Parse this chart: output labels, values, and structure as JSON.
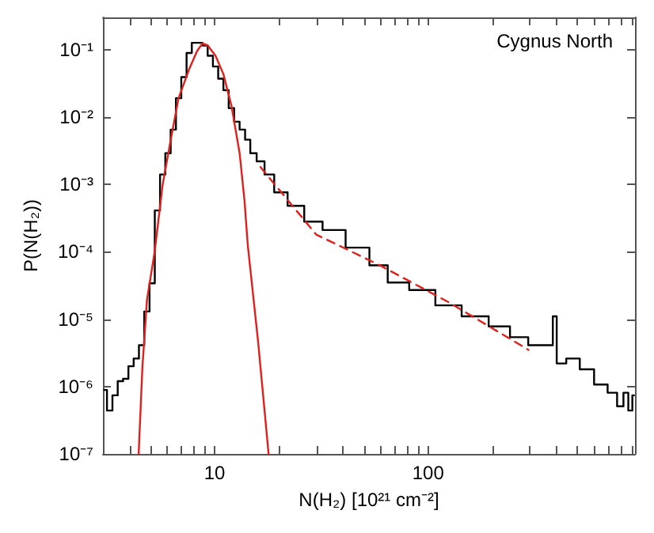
{
  "chart_data": {
    "type": "step",
    "xlabel": "N(H₂) [10²¹ cm⁻²]",
    "ylabel": "P(N(H₂))",
    "annotations": [
      "Cygnus North"
    ],
    "log": "xy",
    "grid": false,
    "marker": "none",
    "xlim": [
      3,
      930
    ],
    "ylim": [
      1e-07,
      0.3
    ],
    "xticks": [
      {
        "value": 4,
        "label": null
      },
      {
        "value": 5,
        "label": null
      },
      {
        "value": 6,
        "label": null
      },
      {
        "value": 7,
        "label": null
      },
      {
        "value": 8,
        "label": null
      },
      {
        "value": 9,
        "label": null
      },
      10,
      {
        "value": 20,
        "label": null
      },
      {
        "value": 30,
        "label": null
      },
      {
        "value": 40,
        "label": null
      },
      {
        "value": 50,
        "label": null
      },
      {
        "value": 60,
        "label": null
      },
      {
        "value": 70,
        "label": null
      },
      {
        "value": 80,
        "label": null
      },
      {
        "value": 90,
        "label": null
      },
      100,
      {
        "value": 200,
        "label": null
      },
      {
        "value": 300,
        "label": null
      },
      {
        "value": 400,
        "label": null
      },
      {
        "value": 500,
        "label": null
      },
      {
        "value": 600,
        "label": null
      },
      {
        "value": 700,
        "label": null
      },
      {
        "value": 800,
        "label": null
      },
      {
        "value": 900,
        "label": null
      }
    ],
    "yticks": [
      {
        "value": 1e-07,
        "label": "10⁻⁷"
      },
      {
        "value": 1e-06,
        "label": "10⁻⁶"
      },
      {
        "value": 1e-05,
        "label": "10⁻⁵"
      },
      {
        "value": 0.0001,
        "label": "10⁻⁴"
      },
      {
        "value": 0.001,
        "label": "10⁻³"
      },
      {
        "value": 0.01,
        "label": "10⁻²"
      },
      {
        "value": 0.1,
        "label": "10⁻¹"
      }
    ],
    "series": [
      {
        "type": "step",
        "color": "#000000",
        "line_style": "solid",
        "x": [
          3.04,
          3.23,
          3.42,
          3.62,
          3.84,
          4.06,
          4.3,
          4.55,
          4.82,
          5.1,
          5.4,
          5.71,
          6.05,
          6.41,
          6.78,
          7.19,
          7.6,
          8.05,
          8.53,
          9.02,
          9.55,
          10.1,
          10.7,
          11.3,
          12.0,
          12.7,
          13.5,
          14.3,
          15.1,
          16.4,
          17.9,
          20.2,
          23.9,
          28.9,
          35.5,
          47.5,
          59.3,
          70.5,
          94.2,
          124,
          166,
          222,
          263,
          329,
          377,
          390,
          410,
          479,
          549,
          652,
          735,
          800,
          843,
          888,
          920
        ],
        "values": [
          8.9e-07,
          4.4e-07,
          7.4e-07,
          1.2e-06,
          1.3e-06,
          2e-06,
          2.6e-06,
          4.1e-06,
          1.3e-05,
          3.4e-05,
          0.00041,
          0.0014,
          0.0029,
          0.0065,
          0.019,
          0.039,
          0.089,
          0.126,
          0.126,
          0.115,
          0.081,
          0.056,
          0.037,
          0.025,
          0.0135,
          0.0085,
          0.0065,
          0.0046,
          0.0029,
          0.0022,
          0.0014,
          0.00076,
          0.00048,
          0.00028,
          0.00021,
          0.000115,
          6.3e-05,
          3.5e-05,
          2.7e-05,
          1.6e-05,
          1.1e-05,
          7.8e-06,
          5.4e-06,
          4.1e-06,
          4.1e-06,
          1.1e-05,
          2.2e-06,
          2.6e-06,
          1.8e-06,
          1.07e-06,
          8.1e-07,
          5.1e-07,
          8.1e-07,
          4.4e-07,
          7.4e-07
        ]
      },
      {
        "type": "line",
        "color": "#e0201b",
        "line_style": "solid",
        "x": [
          4.41,
          4.59,
          4.82,
          5.24,
          5.71,
          6.2,
          6.78,
          7.6,
          8.28,
          8.77,
          9.29,
          10.1,
          11.0,
          12.0,
          13.1,
          13.8,
          14.3,
          16.0,
          17.9
        ],
        "values": [
          1e-07,
          1.9e-06,
          1.9e-05,
          0.0001,
          0.00098,
          0.0042,
          0.019,
          0.051,
          0.095,
          0.123,
          0.115,
          0.081,
          0.043,
          0.0145,
          0.0029,
          0.00058,
          0.000126,
          4.5e-06,
          1e-07
        ]
      },
      {
        "type": "line",
        "color": "#e0201b",
        "line_style": "dashed",
        "x": [
          16.4,
          29.9,
          59.3,
          124,
          295
        ],
        "values": [
          0.0018,
          0.00018,
          6.3e-05,
          1.8e-05,
          3.5e-06
        ]
      }
    ]
  }
}
